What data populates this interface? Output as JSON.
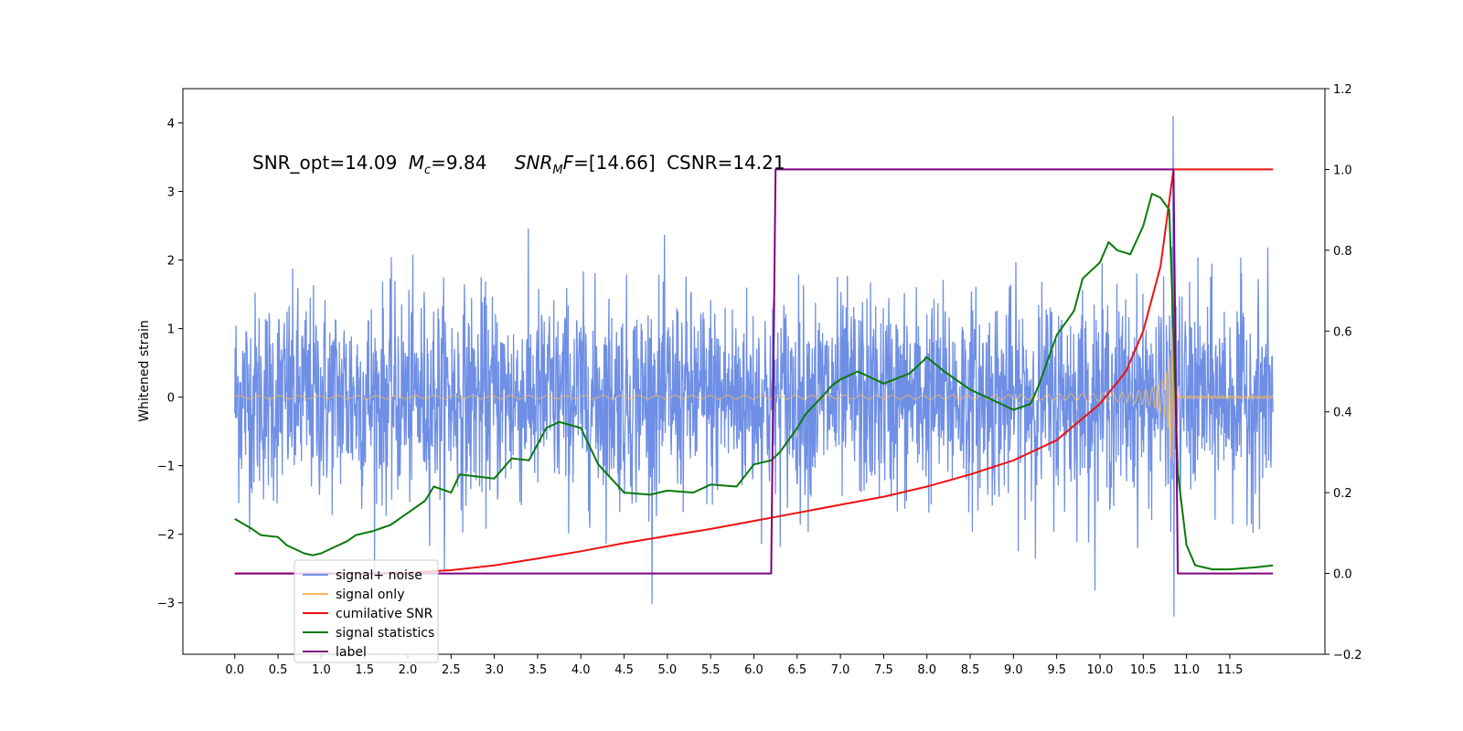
{
  "chart_data": {
    "type": "line",
    "title": "",
    "annotation": {
      "snr_opt": "SNR_opt=14.09",
      "mc_sym": "M",
      "mc_sub": "c",
      "mc_val": "=9.84",
      "snrmf_sym": "SNR",
      "snrmf_sub": "M",
      "snrmf_f": "F",
      "snrmf_val": "=[14.66]",
      "csnr": "CSNR=14.21"
    },
    "ylabel": "Whitened strain",
    "xlabel": "",
    "xlim": [
      -0.6,
      12.6
    ],
    "ylim": [
      -3.75,
      4.5
    ],
    "ylim_right": [
      -0.2,
      1.2
    ],
    "x_ticks": [
      "0.0",
      "0.5",
      "1.0",
      "1.5",
      "2.0",
      "2.5",
      "3.0",
      "3.5",
      "4.0",
      "4.5",
      "5.0",
      "5.5",
      "6.0",
      "6.5",
      "7.0",
      "7.5",
      "8.0",
      "8.5",
      "9.0",
      "9.5",
      "10.0",
      "10.5",
      "11.0",
      "11.5"
    ],
    "y_ticks_left": [
      "−3",
      "−2",
      "−1",
      "0",
      "1",
      "2",
      "3",
      "4"
    ],
    "y_ticks_left_values": [
      -3,
      -2,
      -1,
      0,
      1,
      2,
      3,
      4
    ],
    "y_ticks_right": [
      "−0.2",
      "0.0",
      "0.2",
      "0.4",
      "0.6",
      "0.8",
      "1.0",
      "1.2"
    ],
    "y_ticks_right_values": [
      -0.2,
      0.0,
      0.2,
      0.4,
      0.6,
      0.8,
      1.0,
      1.2
    ],
    "legend_position": "lower-left",
    "series": [
      {
        "name": "signal+ noise",
        "color": "#6f8fe6",
        "axis": "left",
        "kind": "noise",
        "x_range": [
          0,
          12.0
        ],
        "envelope": 1.5
      },
      {
        "name": "signal only",
        "color": "#f5b85a",
        "axis": "left",
        "kind": "chirp",
        "x_range": [
          0,
          12.0
        ],
        "merger_x": 10.85,
        "peak": 1.0
      },
      {
        "name": "cumilative SNR",
        "color": "#ee1111",
        "axis": "right",
        "x": [
          0.0,
          0.5,
          1.0,
          1.5,
          2.0,
          2.5,
          3.0,
          3.5,
          4.0,
          4.5,
          5.0,
          5.5,
          6.0,
          6.5,
          7.0,
          7.5,
          8.0,
          8.5,
          9.0,
          9.5,
          10.0,
          10.3,
          10.5,
          10.7,
          10.85,
          11.0,
          11.5,
          12.0
        ],
        "y": [
          0.0,
          0.0,
          0.0,
          0.0,
          0.002,
          0.008,
          0.02,
          0.037,
          0.055,
          0.075,
          0.093,
          0.11,
          0.13,
          0.15,
          0.17,
          0.19,
          0.215,
          0.245,
          0.28,
          0.33,
          0.42,
          0.5,
          0.6,
          0.76,
          1.0,
          1.0,
          1.0,
          1.0
        ]
      },
      {
        "name": "signal statistics",
        "color": "#0a7a0a",
        "axis": "right",
        "x": [
          0.0,
          0.2,
          0.3,
          0.5,
          0.6,
          0.8,
          0.9,
          1.0,
          1.1,
          1.3,
          1.4,
          1.6,
          1.8,
          2.0,
          2.2,
          2.3,
          2.5,
          2.6,
          2.8,
          3.0,
          3.2,
          3.4,
          3.6,
          3.75,
          4.0,
          4.2,
          4.5,
          4.8,
          5.0,
          5.3,
          5.5,
          5.8,
          6.0,
          6.2,
          6.3,
          6.5,
          6.6,
          6.8,
          6.9,
          7.0,
          7.2,
          7.5,
          7.8,
          8.0,
          8.2,
          8.5,
          8.7,
          9.0,
          9.2,
          9.3,
          9.5,
          9.7,
          9.8,
          10.0,
          10.1,
          10.2,
          10.35,
          10.5,
          10.6,
          10.7,
          10.8,
          10.85,
          10.9,
          11.0,
          11.1,
          11.3,
          11.5,
          11.8,
          12.0
        ],
        "y": [
          0.135,
          0.11,
          0.095,
          0.09,
          0.07,
          0.05,
          0.045,
          0.05,
          0.06,
          0.08,
          0.095,
          0.105,
          0.12,
          0.15,
          0.18,
          0.215,
          0.2,
          0.245,
          0.24,
          0.235,
          0.285,
          0.28,
          0.36,
          0.375,
          0.36,
          0.27,
          0.2,
          0.195,
          0.205,
          0.2,
          0.22,
          0.215,
          0.27,
          0.28,
          0.3,
          0.36,
          0.395,
          0.44,
          0.465,
          0.48,
          0.5,
          0.47,
          0.495,
          0.535,
          0.5,
          0.455,
          0.435,
          0.405,
          0.42,
          0.47,
          0.59,
          0.65,
          0.73,
          0.77,
          0.82,
          0.8,
          0.79,
          0.86,
          0.94,
          0.93,
          0.9,
          0.6,
          0.25,
          0.07,
          0.02,
          0.01,
          0.01,
          0.015,
          0.02
        ]
      },
      {
        "name": "label",
        "color": "#800080",
        "axis": "right",
        "x": [
          0.0,
          6.2,
          6.25,
          10.85,
          10.9,
          12.0
        ],
        "y": [
          0.0,
          0.0,
          1.0,
          1.0,
          0.0,
          0.0
        ]
      }
    ]
  }
}
